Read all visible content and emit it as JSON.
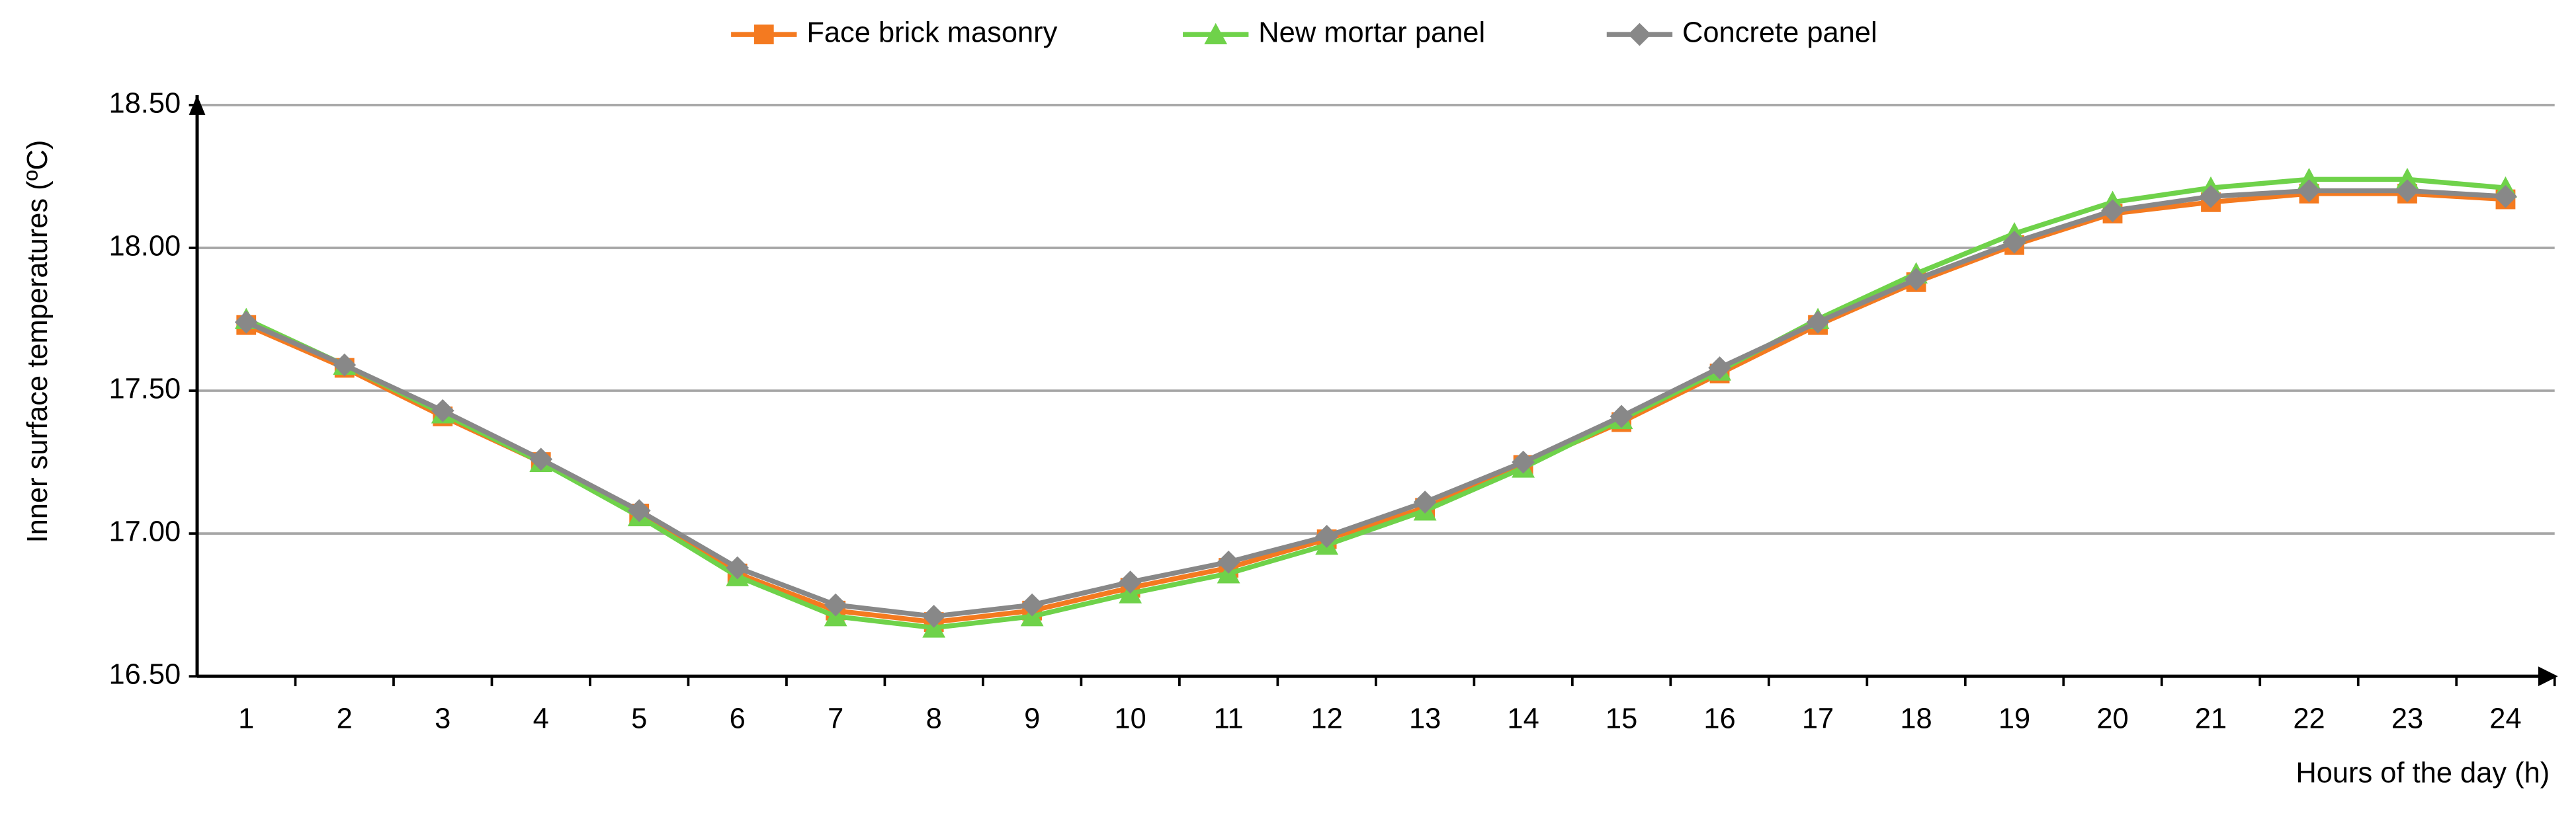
{
  "chart_data": {
    "type": "line",
    "y_label": "Inner surface temperatures (ºC)",
    "x_label": "Hours of the day (h)",
    "categories": [
      "1",
      "2",
      "3",
      "4",
      "5",
      "6",
      "7",
      "8",
      "9",
      "10",
      "11",
      "12",
      "13",
      "14",
      "15",
      "16",
      "17",
      "18",
      "19",
      "20",
      "21",
      "22",
      "23",
      "24"
    ],
    "series": [
      {
        "name": "Face brick masonry",
        "color": "#f47a20",
        "marker": "square",
        "values": [
          17.73,
          17.58,
          17.41,
          17.25,
          17.07,
          16.86,
          16.73,
          16.69,
          16.73,
          16.81,
          16.88,
          16.98,
          17.09,
          17.24,
          17.39,
          17.56,
          17.73,
          17.88,
          18.01,
          18.12,
          18.16,
          18.19,
          18.19,
          18.17
        ]
      },
      {
        "name": "New mortar panel",
        "color": "#6fd24a",
        "marker": "triangle",
        "values": [
          17.75,
          17.59,
          17.42,
          17.25,
          17.06,
          16.85,
          16.71,
          16.67,
          16.71,
          16.79,
          16.86,
          16.96,
          17.08,
          17.23,
          17.4,
          17.57,
          17.75,
          17.91,
          18.05,
          18.16,
          18.21,
          18.24,
          18.24,
          18.21
        ]
      },
      {
        "name": "Concrete panel",
        "color": "#888888",
        "marker": "diamond",
        "values": [
          17.74,
          17.59,
          17.43,
          17.26,
          17.08,
          16.88,
          16.75,
          16.71,
          16.75,
          16.83,
          16.9,
          16.99,
          17.11,
          17.25,
          17.41,
          17.58,
          17.74,
          17.89,
          18.02,
          18.13,
          18.18,
          18.2,
          18.2,
          18.18
        ]
      }
    ],
    "ylim": [
      16.5,
      18.5
    ],
    "yticks": [
      {
        "value": 16.5,
        "label": "16.50"
      },
      {
        "value": 17,
        "label": "17.00"
      },
      {
        "value": 17.5,
        "label": "17.50"
      },
      {
        "value": 18,
        "label": "18.00"
      },
      {
        "value": 18.5,
        "label": "18.50"
      }
    ],
    "grid": true,
    "legend": "top"
  }
}
